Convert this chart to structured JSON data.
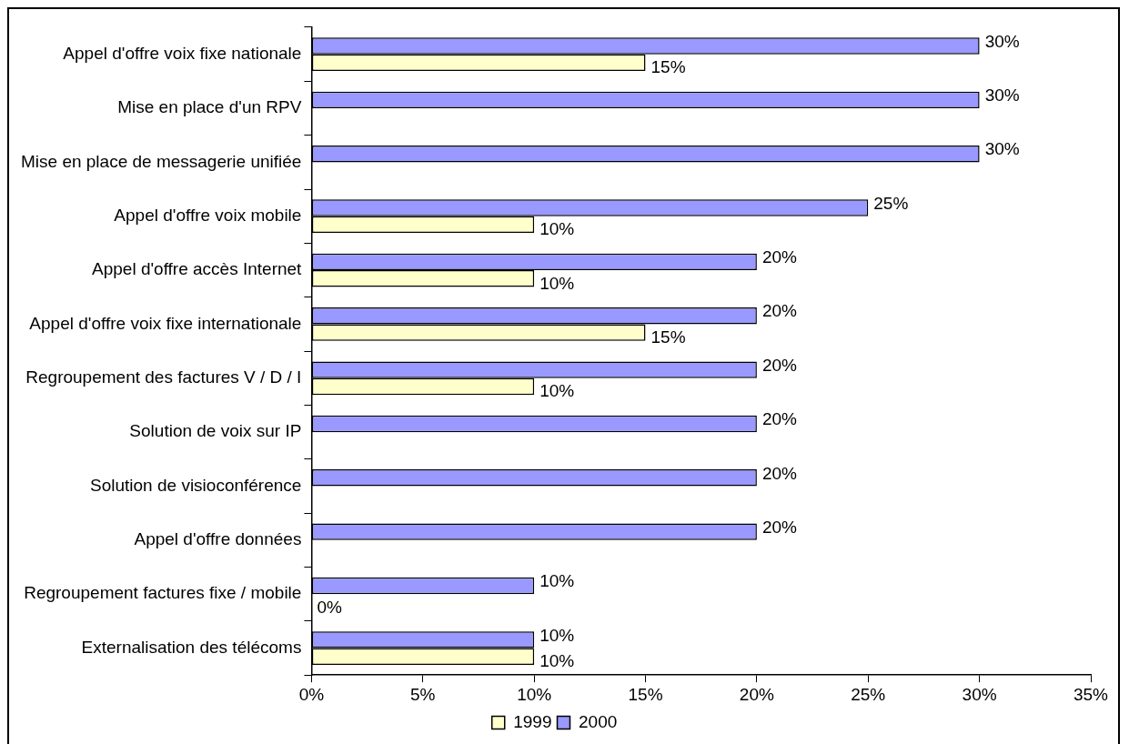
{
  "chart_data": {
    "type": "bar",
    "orientation": "horizontal",
    "categories": [
      "Appel d'offre voix fixe nationale",
      "Mise en place d'un RPV",
      "Mise en place de messagerie unifiée",
      "Appel d'offre voix mobile",
      "Appel d'offre accès Internet",
      "Appel d'offre voix fixe internationale",
      "Regroupement des factures V / D / I",
      "Solution de voix sur IP",
      "Solution de visioconférence",
      "Appel d'offre données",
      "Regroupement factures fixe / mobile",
      "Externalisation des télécoms"
    ],
    "series": [
      {
        "name": "1999",
        "color": "#ffffcc",
        "values": [
          15,
          null,
          null,
          10,
          10,
          15,
          10,
          null,
          null,
          null,
          0,
          10
        ],
        "value_labels": [
          "15%",
          null,
          null,
          "10%",
          "10%",
          "15%",
          "10%",
          null,
          null,
          null,
          "0%",
          "10%"
        ]
      },
      {
        "name": "2000",
        "color": "#9999ff",
        "values": [
          30,
          30,
          30,
          25,
          20,
          20,
          20,
          20,
          20,
          20,
          10,
          10
        ],
        "value_labels": [
          "30%",
          "30%",
          "30%",
          "25%",
          "20%",
          "20%",
          "20%",
          "20%",
          "20%",
          "20%",
          "10%",
          "10%"
        ]
      }
    ],
    "xlim": [
      0,
      35
    ],
    "xticks": [
      {
        "value": 0,
        "label": "0%"
      },
      {
        "value": 5,
        "label": "5%"
      },
      {
        "value": 10,
        "label": "10%"
      },
      {
        "value": 15,
        "label": "15%"
      },
      {
        "value": 20,
        "label": "20%"
      },
      {
        "value": 25,
        "label": "25%"
      },
      {
        "value": 30,
        "label": "30%"
      },
      {
        "value": 35,
        "label": "35%"
      }
    ],
    "grid": false,
    "legend": "bottom"
  }
}
